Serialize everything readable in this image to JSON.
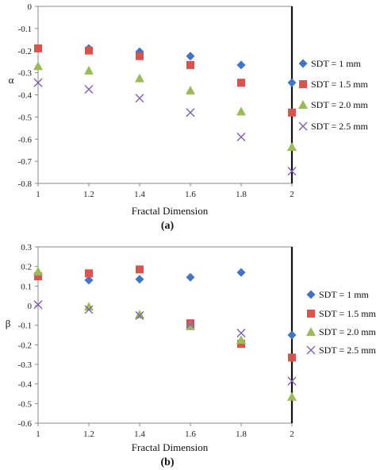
{
  "chart_data": [
    {
      "type": "scatter",
      "panel_label": "(a)",
      "xlabel": "Fractal Dimension",
      "ylabel": "α",
      "xlim": [
        1,
        2
      ],
      "ylim": [
        -0.8,
        0
      ],
      "xticks": [
        "1",
        "1.2",
        "1.4",
        "1.6",
        "1.8",
        "2"
      ],
      "yticks": [
        "0",
        "-0.1",
        "-0.2",
        "-0.3",
        "-0.4",
        "-0.5",
        "-0.6",
        "-0.7",
        "-0.8"
      ],
      "grid": false,
      "legend_position": "right",
      "x": [
        1,
        1.2,
        1.4,
        1.6,
        1.8,
        2
      ],
      "series": [
        {
          "name": "SDT = 1 mm",
          "marker": "diamond",
          "color": "#4472C4",
          "values": [
            -0.19,
            -0.19,
            -0.205,
            -0.225,
            -0.265,
            -0.345
          ]
        },
        {
          "name": "SDT = 1.5 mm",
          "marker": "square",
          "color": "#D9534F",
          "values": [
            -0.19,
            -0.2,
            -0.225,
            -0.265,
            -0.345,
            -0.48
          ]
        },
        {
          "name": "SDT = 2.0 mm",
          "marker": "triangle",
          "color": "#9BBB59",
          "values": [
            -0.27,
            -0.29,
            -0.325,
            -0.38,
            -0.475,
            -0.635
          ]
        },
        {
          "name": "SDT = 2.5 mm",
          "marker": "cross",
          "color": "#7E5FB5",
          "values": [
            -0.345,
            -0.375,
            -0.415,
            -0.48,
            -0.59,
            -0.745
          ]
        }
      ]
    },
    {
      "type": "scatter",
      "panel_label": "(b)",
      "xlabel": "Fractal Dimension",
      "ylabel": "β",
      "xlim": [
        1,
        2
      ],
      "ylim": [
        -0.6,
        0.3
      ],
      "xticks": [
        "1",
        "1.2",
        "1.4",
        "1.6",
        "1.8",
        "2"
      ],
      "yticks": [
        "0.3",
        "0.2",
        "0.1",
        "0",
        "-0.1",
        "-0.2",
        "-0.3",
        "-0.4",
        "-0.5",
        "-0.6"
      ],
      "grid": false,
      "legend_position": "right",
      "x": [
        1,
        1.2,
        1.4,
        1.6,
        1.8,
        2
      ],
      "series": [
        {
          "name": "SDT = 1 mm",
          "marker": "diamond",
          "color": "#4472C4",
          "values": [
            0.16,
            0.13,
            0.135,
            0.145,
            0.17,
            -0.15
          ]
        },
        {
          "name": "SDT = 1.5 mm",
          "marker": "square",
          "color": "#D9534F",
          "values": [
            0.15,
            0.165,
            0.185,
            -0.09,
            -0.195,
            -0.265
          ]
        },
        {
          "name": "SDT = 2.0 mm",
          "marker": "triangle",
          "color": "#9BBB59",
          "values": [
            0.175,
            -0.005,
            -0.045,
            -0.105,
            -0.175,
            -0.465
          ]
        },
        {
          "name": "SDT = 2.5 mm",
          "marker": "cross",
          "color": "#7E5FB5",
          "values": [
            0.005,
            -0.02,
            -0.05,
            -0.095,
            -0.14,
            -0.385
          ]
        }
      ]
    }
  ]
}
